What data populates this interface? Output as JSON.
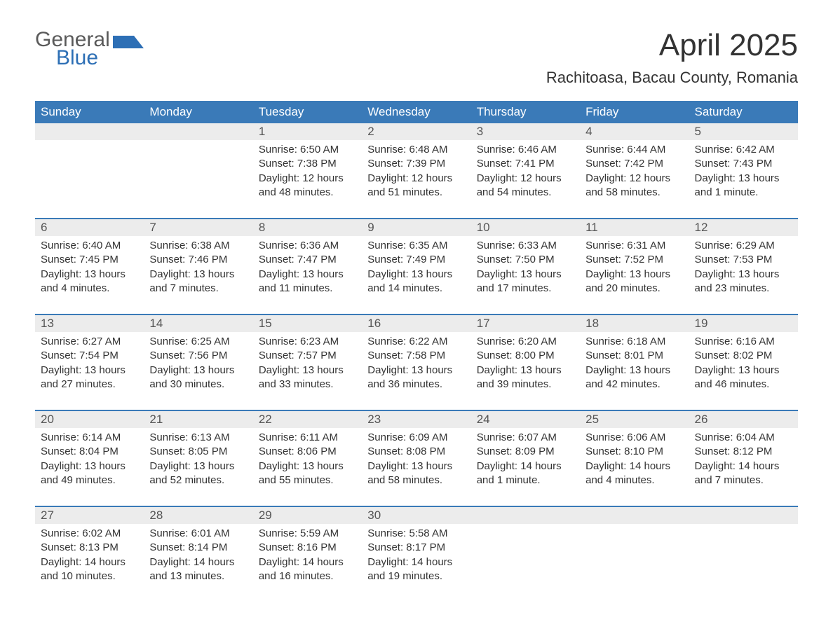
{
  "logo": {
    "text1": "General",
    "text2": "Blue",
    "flag_color": "#2d6fb5"
  },
  "title": "April 2025",
  "location": "Rachitoasa, Bacau County, Romania",
  "colors": {
    "header_bg": "#3a7ab8",
    "header_fg": "#ffffff",
    "daynum_bg": "#ececec",
    "text": "#333333",
    "rule": "#3a7ab8",
    "page_bg": "#ffffff"
  },
  "typography": {
    "title_fontsize": 44,
    "location_fontsize": 22,
    "header_fontsize": 17,
    "body_fontsize": 15,
    "font_family": "Arial"
  },
  "day_headers": [
    "Sunday",
    "Monday",
    "Tuesday",
    "Wednesday",
    "Thursday",
    "Friday",
    "Saturday"
  ],
  "weeks": [
    [
      null,
      null,
      {
        "n": "1",
        "sunrise": "Sunrise: 6:50 AM",
        "sunset": "Sunset: 7:38 PM",
        "d1": "Daylight: 12 hours",
        "d2": "and 48 minutes."
      },
      {
        "n": "2",
        "sunrise": "Sunrise: 6:48 AM",
        "sunset": "Sunset: 7:39 PM",
        "d1": "Daylight: 12 hours",
        "d2": "and 51 minutes."
      },
      {
        "n": "3",
        "sunrise": "Sunrise: 6:46 AM",
        "sunset": "Sunset: 7:41 PM",
        "d1": "Daylight: 12 hours",
        "d2": "and 54 minutes."
      },
      {
        "n": "4",
        "sunrise": "Sunrise: 6:44 AM",
        "sunset": "Sunset: 7:42 PM",
        "d1": "Daylight: 12 hours",
        "d2": "and 58 minutes."
      },
      {
        "n": "5",
        "sunrise": "Sunrise: 6:42 AM",
        "sunset": "Sunset: 7:43 PM",
        "d1": "Daylight: 13 hours",
        "d2": "and 1 minute."
      }
    ],
    [
      {
        "n": "6",
        "sunrise": "Sunrise: 6:40 AM",
        "sunset": "Sunset: 7:45 PM",
        "d1": "Daylight: 13 hours",
        "d2": "and 4 minutes."
      },
      {
        "n": "7",
        "sunrise": "Sunrise: 6:38 AM",
        "sunset": "Sunset: 7:46 PM",
        "d1": "Daylight: 13 hours",
        "d2": "and 7 minutes."
      },
      {
        "n": "8",
        "sunrise": "Sunrise: 6:36 AM",
        "sunset": "Sunset: 7:47 PM",
        "d1": "Daylight: 13 hours",
        "d2": "and 11 minutes."
      },
      {
        "n": "9",
        "sunrise": "Sunrise: 6:35 AM",
        "sunset": "Sunset: 7:49 PM",
        "d1": "Daylight: 13 hours",
        "d2": "and 14 minutes."
      },
      {
        "n": "10",
        "sunrise": "Sunrise: 6:33 AM",
        "sunset": "Sunset: 7:50 PM",
        "d1": "Daylight: 13 hours",
        "d2": "and 17 minutes."
      },
      {
        "n": "11",
        "sunrise": "Sunrise: 6:31 AM",
        "sunset": "Sunset: 7:52 PM",
        "d1": "Daylight: 13 hours",
        "d2": "and 20 minutes."
      },
      {
        "n": "12",
        "sunrise": "Sunrise: 6:29 AM",
        "sunset": "Sunset: 7:53 PM",
        "d1": "Daylight: 13 hours",
        "d2": "and 23 minutes."
      }
    ],
    [
      {
        "n": "13",
        "sunrise": "Sunrise: 6:27 AM",
        "sunset": "Sunset: 7:54 PM",
        "d1": "Daylight: 13 hours",
        "d2": "and 27 minutes."
      },
      {
        "n": "14",
        "sunrise": "Sunrise: 6:25 AM",
        "sunset": "Sunset: 7:56 PM",
        "d1": "Daylight: 13 hours",
        "d2": "and 30 minutes."
      },
      {
        "n": "15",
        "sunrise": "Sunrise: 6:23 AM",
        "sunset": "Sunset: 7:57 PM",
        "d1": "Daylight: 13 hours",
        "d2": "and 33 minutes."
      },
      {
        "n": "16",
        "sunrise": "Sunrise: 6:22 AM",
        "sunset": "Sunset: 7:58 PM",
        "d1": "Daylight: 13 hours",
        "d2": "and 36 minutes."
      },
      {
        "n": "17",
        "sunrise": "Sunrise: 6:20 AM",
        "sunset": "Sunset: 8:00 PM",
        "d1": "Daylight: 13 hours",
        "d2": "and 39 minutes."
      },
      {
        "n": "18",
        "sunrise": "Sunrise: 6:18 AM",
        "sunset": "Sunset: 8:01 PM",
        "d1": "Daylight: 13 hours",
        "d2": "and 42 minutes."
      },
      {
        "n": "19",
        "sunrise": "Sunrise: 6:16 AM",
        "sunset": "Sunset: 8:02 PM",
        "d1": "Daylight: 13 hours",
        "d2": "and 46 minutes."
      }
    ],
    [
      {
        "n": "20",
        "sunrise": "Sunrise: 6:14 AM",
        "sunset": "Sunset: 8:04 PM",
        "d1": "Daylight: 13 hours",
        "d2": "and 49 minutes."
      },
      {
        "n": "21",
        "sunrise": "Sunrise: 6:13 AM",
        "sunset": "Sunset: 8:05 PM",
        "d1": "Daylight: 13 hours",
        "d2": "and 52 minutes."
      },
      {
        "n": "22",
        "sunrise": "Sunrise: 6:11 AM",
        "sunset": "Sunset: 8:06 PM",
        "d1": "Daylight: 13 hours",
        "d2": "and 55 minutes."
      },
      {
        "n": "23",
        "sunrise": "Sunrise: 6:09 AM",
        "sunset": "Sunset: 8:08 PM",
        "d1": "Daylight: 13 hours",
        "d2": "and 58 minutes."
      },
      {
        "n": "24",
        "sunrise": "Sunrise: 6:07 AM",
        "sunset": "Sunset: 8:09 PM",
        "d1": "Daylight: 14 hours",
        "d2": "and 1 minute."
      },
      {
        "n": "25",
        "sunrise": "Sunrise: 6:06 AM",
        "sunset": "Sunset: 8:10 PM",
        "d1": "Daylight: 14 hours",
        "d2": "and 4 minutes."
      },
      {
        "n": "26",
        "sunrise": "Sunrise: 6:04 AM",
        "sunset": "Sunset: 8:12 PM",
        "d1": "Daylight: 14 hours",
        "d2": "and 7 minutes."
      }
    ],
    [
      {
        "n": "27",
        "sunrise": "Sunrise: 6:02 AM",
        "sunset": "Sunset: 8:13 PM",
        "d1": "Daylight: 14 hours",
        "d2": "and 10 minutes."
      },
      {
        "n": "28",
        "sunrise": "Sunrise: 6:01 AM",
        "sunset": "Sunset: 8:14 PM",
        "d1": "Daylight: 14 hours",
        "d2": "and 13 minutes."
      },
      {
        "n": "29",
        "sunrise": "Sunrise: 5:59 AM",
        "sunset": "Sunset: 8:16 PM",
        "d1": "Daylight: 14 hours",
        "d2": "and 16 minutes."
      },
      {
        "n": "30",
        "sunrise": "Sunrise: 5:58 AM",
        "sunset": "Sunset: 8:17 PM",
        "d1": "Daylight: 14 hours",
        "d2": "and 19 minutes."
      },
      null,
      null,
      null
    ]
  ]
}
